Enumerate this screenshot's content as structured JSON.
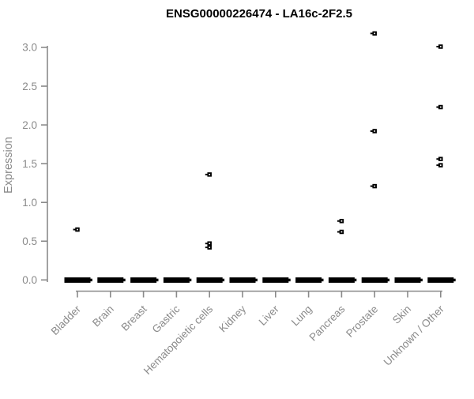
{
  "chart_data": {
    "type": "scatter",
    "title": "ENSG00000226474 - LA16c-2F2.5",
    "ylabel": "Expression",
    "xlabel": "",
    "ylim": [
      0,
      3.2
    ],
    "yticks": [
      0,
      0.5,
      1,
      1.5,
      2,
      2.5,
      3
    ],
    "ytick_labels": [
      "0.0",
      "0.5",
      "1.0",
      "1.5",
      "2.0",
      "2.5",
      "3.0"
    ],
    "grid": false,
    "legend": "none",
    "marker": "open-square",
    "colors": {
      "point": "#000000",
      "axis": "#8a8a8a",
      "title": "#000000",
      "background": "#ffffff"
    },
    "categories": [
      "Bladder",
      "Brain",
      "Breast",
      "Gastric",
      "Hematopoietic cells",
      "Kidney",
      "Liver",
      "Lung",
      "Pancreas",
      "Prostate",
      "Skin",
      "Unknown / Other"
    ],
    "series": [
      {
        "category": "Bladder",
        "zero_cluster": true,
        "points": [
          0.65
        ]
      },
      {
        "category": "Brain",
        "zero_cluster": true,
        "points": []
      },
      {
        "category": "Breast",
        "zero_cluster": true,
        "points": []
      },
      {
        "category": "Gastric",
        "zero_cluster": true,
        "points": []
      },
      {
        "category": "Hematopoietic cells",
        "zero_cluster": true,
        "points": [
          1.36,
          0.47,
          0.42
        ]
      },
      {
        "category": "Kidney",
        "zero_cluster": true,
        "points": []
      },
      {
        "category": "Liver",
        "zero_cluster": true,
        "points": []
      },
      {
        "category": "Lung",
        "zero_cluster": true,
        "points": []
      },
      {
        "category": "Pancreas",
        "zero_cluster": true,
        "points": [
          0.76,
          0.62
        ]
      },
      {
        "category": "Prostate",
        "zero_cluster": true,
        "points": [
          3.18,
          1.92,
          1.21
        ]
      },
      {
        "category": "Skin",
        "zero_cluster": true,
        "points": []
      },
      {
        "category": "Unknown / Other",
        "zero_cluster": true,
        "points": [
          3.01,
          2.23,
          1.56,
          1.48
        ]
      }
    ]
  }
}
